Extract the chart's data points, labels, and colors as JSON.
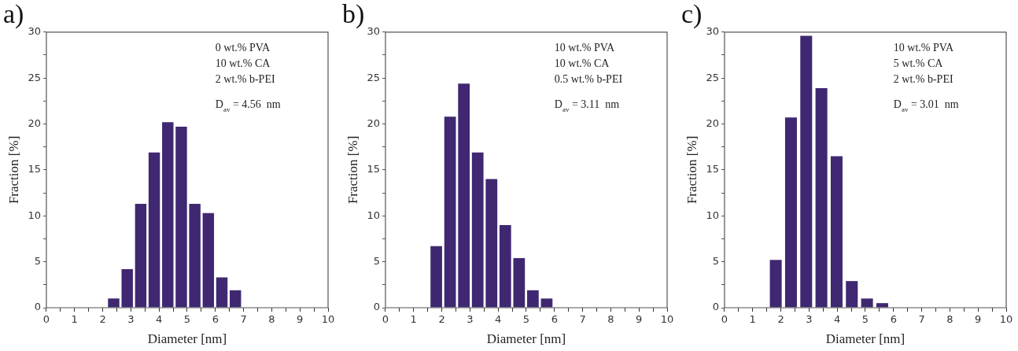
{
  "chart_data": [
    {
      "type": "histogram",
      "title": "a)",
      "xlabel": "Diameter [nm]",
      "ylabel": "Fraction [%]",
      "color": "#3f2871",
      "bins": [
        2.15,
        2.63,
        3.11,
        3.59,
        4.07,
        4.55,
        5.03,
        5.51,
        5.99,
        6.47,
        6.95
      ],
      "values": [
        1.0,
        4.2,
        11.3,
        16.9,
        20.2,
        19.7,
        11.3,
        10.3,
        3.3,
        1.9
      ],
      "xlim": [
        0,
        10
      ],
      "ylim": [
        0,
        30
      ],
      "xticks": [
        0,
        {
          "value": 0.5,
          "label": null
        },
        1,
        {
          "value": 1.5,
          "label": null
        },
        2,
        {
          "value": 2.5,
          "label": null
        },
        3,
        {
          "value": 3.5,
          "label": null
        },
        4,
        {
          "value": 4.5,
          "label": null
        },
        5,
        {
          "value": 5.5,
          "label": null
        },
        6,
        {
          "value": 6.5,
          "label": null
        },
        7,
        {
          "value": 7.5,
          "label": null
        },
        8,
        {
          "value": 8.5,
          "label": null
        },
        9,
        {
          "value": 9.5,
          "label": null
        },
        10
      ],
      "yticks": [
        0,
        {
          "value": 2.5,
          "label": null
        },
        5,
        {
          "value": 7.5,
          "label": null
        },
        10,
        {
          "value": 12.5,
          "label": null
        },
        15,
        {
          "value": 17.5,
          "label": null
        },
        20,
        {
          "value": 22.5,
          "label": null
        },
        25,
        {
          "value": 27.5,
          "label": null
        },
        30
      ],
      "annotations": [
        "0 wt.% PVA",
        "10 wt.% CA",
        "2 wt.% b-PEI",
        "D$_{av}$ = 4.56  nm"
      ]
    },
    {
      "type": "histogram",
      "title": "b)",
      "xlabel": "Diameter [nm]",
      "ylabel": "Fraction [%]",
      "color": "#3f2871",
      "bins": [
        1.56,
        2.05,
        2.54,
        3.03,
        3.52,
        4.01,
        4.5,
        4.99,
        5.48,
        5.97
      ],
      "values": [
        6.7,
        20.8,
        24.4,
        16.9,
        14.0,
        9.0,
        5.4,
        1.9,
        1.0
      ],
      "xlim": [
        0,
        10
      ],
      "ylim": [
        0,
        30
      ],
      "xticks": [
        0,
        {
          "value": 0.5,
          "label": null
        },
        1,
        {
          "value": 1.5,
          "label": null
        },
        2,
        {
          "value": 2.5,
          "label": null
        },
        3,
        {
          "value": 3.5,
          "label": null
        },
        4,
        {
          "value": 4.5,
          "label": null
        },
        5,
        {
          "value": 5.5,
          "label": null
        },
        6,
        {
          "value": 6.5,
          "label": null
        },
        7,
        {
          "value": 7.5,
          "label": null
        },
        8,
        {
          "value": 8.5,
          "label": null
        },
        9,
        {
          "value": 9.5,
          "label": null
        },
        10
      ],
      "yticks": [
        0,
        {
          "value": 2.5,
          "label": null
        },
        5,
        {
          "value": 7.5,
          "label": null
        },
        10,
        {
          "value": 12.5,
          "label": null
        },
        15,
        {
          "value": 17.5,
          "label": null
        },
        20,
        {
          "value": 22.5,
          "label": null
        },
        25,
        {
          "value": 27.5,
          "label": null
        },
        30
      ],
      "annotations": [
        "10 wt.% PVA",
        "10 wt.% CA",
        "0.5 wt.% b-PEI",
        "D$_{av}$ = 3.11  nm"
      ]
    },
    {
      "type": "histogram",
      "title": "c)",
      "xlabel": "Diameter [nm]",
      "ylabel": "Fraction [%]",
      "color": "#3f2871",
      "bins": [
        1.55,
        2.09,
        2.63,
        3.17,
        3.71,
        4.25,
        4.79,
        5.33,
        5.87
      ],
      "values": [
        5.2,
        20.7,
        29.6,
        23.9,
        16.5,
        2.9,
        1.0,
        0.5
      ],
      "xlim": [
        0,
        10
      ],
      "ylim": [
        0,
        30
      ],
      "xticks": [
        0,
        {
          "value": 0.5,
          "label": null
        },
        1,
        {
          "value": 1.5,
          "label": null
        },
        2,
        {
          "value": 2.5,
          "label": null
        },
        3,
        {
          "value": 3.5,
          "label": null
        },
        4,
        {
          "value": 4.5,
          "label": null
        },
        5,
        {
          "value": 5.5,
          "label": null
        },
        6,
        {
          "value": 6.5,
          "label": null
        },
        7,
        {
          "value": 7.5,
          "label": null
        },
        8,
        {
          "value": 8.5,
          "label": null
        },
        9,
        {
          "value": 9.5,
          "label": null
        },
        10
      ],
      "yticks": [
        0,
        {
          "value": 2.5,
          "label": null
        },
        5,
        {
          "value": 7.5,
          "label": null
        },
        10,
        {
          "value": 12.5,
          "label": null
        },
        15,
        {
          "value": 17.5,
          "label": null
        },
        20,
        {
          "value": 22.5,
          "label": null
        },
        25,
        {
          "value": 27.5,
          "label": null
        },
        30
      ],
      "annotations": [
        "10 wt.% PVA",
        "5 wt.% CA",
        "2 wt.% b-PEI",
        "D$_{av}$ = 3.01  nm"
      ]
    }
  ]
}
